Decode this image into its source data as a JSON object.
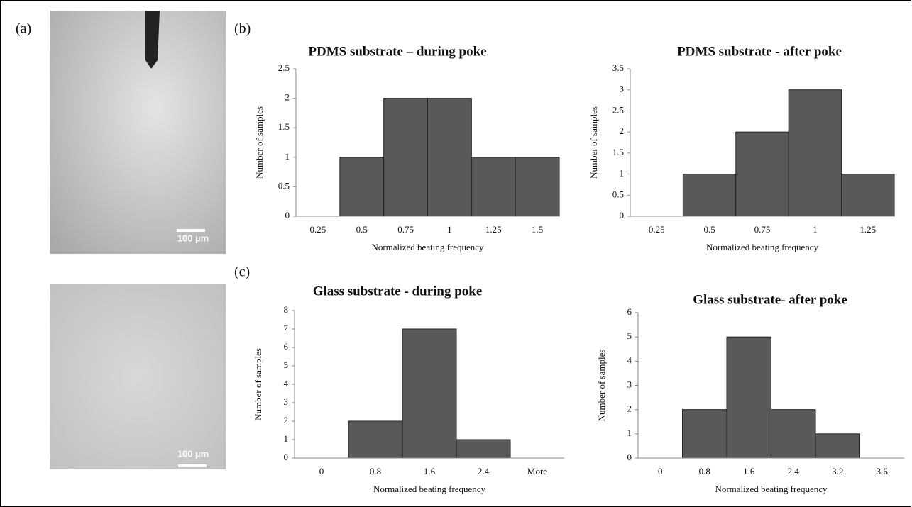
{
  "labels": [
    "(a)",
    "(b)",
    "(c)"
  ],
  "scale_bar_labels": [
    "100 µm",
    "100 µm"
  ],
  "chart_data": [
    {
      "type": "bar",
      "title": "PDMS substrate – during poke",
      "x_label": "Normalized beating frequency",
      "y_label": "Number of samples",
      "categories": [
        "0.25",
        "0.5",
        "0.75",
        "1",
        "1.25",
        "1.5"
      ],
      "values": [
        0,
        1,
        2,
        2,
        1,
        1
      ],
      "color": "#595959",
      "ylim": [
        0,
        2.5
      ],
      "yticks": [
        0,
        0.5,
        1,
        1.5,
        2,
        2.5
      ]
    },
    {
      "type": "bar",
      "title": "PDMS substrate - after poke",
      "x_label": "Normalized beating frequency",
      "y_label": "Number of samples",
      "categories": [
        "0.25",
        "0.5",
        "0.75",
        "1",
        "1.25"
      ],
      "values": [
        0,
        1,
        2,
        3,
        1
      ],
      "color": "#595959",
      "ylim": [
        0,
        3.5
      ],
      "yticks": [
        0,
        0.5,
        1,
        1.5,
        2,
        2.5,
        3,
        3.5
      ]
    },
    {
      "type": "bar",
      "title": "Glass substrate - during poke",
      "x_label": "Normalized beating frequency",
      "y_label": "Number of samples",
      "categories": [
        "0",
        "0.8",
        "1.6",
        "2.4",
        "More"
      ],
      "values": [
        0,
        2,
        7,
        1,
        0
      ],
      "color": "#595959",
      "ylim": [
        0,
        8
      ],
      "yticks": [
        0,
        1,
        2,
        3,
        4,
        5,
        6,
        7,
        8
      ]
    },
    {
      "type": "bar",
      "title": "Glass substrate- after poke",
      "x_label": "Normalized beating frequency",
      "y_label": "Number of samples",
      "categories": [
        "0",
        "0.8",
        "1.6",
        "2.4",
        "3.2",
        "3.6"
      ],
      "values": [
        0,
        2,
        5,
        2,
        1,
        0
      ],
      "color": "#595959",
      "ylim": [
        0,
        6
      ],
      "yticks": [
        0,
        1,
        2,
        3,
        4,
        5,
        6
      ]
    }
  ]
}
